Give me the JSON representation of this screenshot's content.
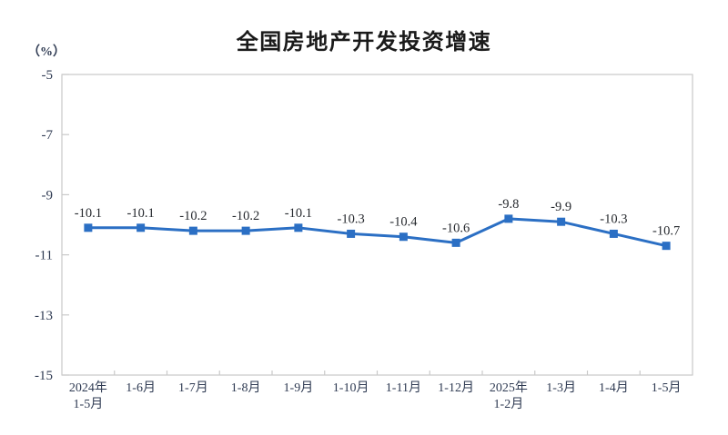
{
  "chart_data": {
    "type": "line",
    "title": "全国房地产开发投资增速",
    "unit_label": "（%）",
    "categories": [
      [
        "2024年",
        "1-5月"
      ],
      [
        "1-6月"
      ],
      [
        "1-7月"
      ],
      [
        "1-8月"
      ],
      [
        "1-9月"
      ],
      [
        "1-10月"
      ],
      [
        "1-11月"
      ],
      [
        "1-12月"
      ],
      [
        "2025年",
        "1-2月"
      ],
      [
        "1-3月"
      ],
      [
        "1-4月"
      ],
      [
        "1-5月"
      ]
    ],
    "values": [
      -10.1,
      -10.1,
      -10.2,
      -10.2,
      -10.1,
      -10.3,
      -10.4,
      -10.6,
      -9.8,
      -9.9,
      -10.3,
      -10.7
    ],
    "data_labels": [
      "-10.1",
      "-10.1",
      "-10.2",
      "-10.2",
      "-10.1",
      "-10.3",
      "-10.4",
      "-10.6",
      "-9.8",
      "-9.9",
      "-10.3",
      "-10.7"
    ],
    "ylim": [
      -15,
      -5
    ],
    "yticks": [
      -5,
      -7,
      -9,
      -11,
      -13,
      -15
    ],
    "grid": false,
    "legend": "none",
    "marker": "square",
    "line_color": "#2b6fc4",
    "axis_color": "#c9c9c9",
    "label_color": "#26292e",
    "tick_text_color": "#2e3a52"
  }
}
